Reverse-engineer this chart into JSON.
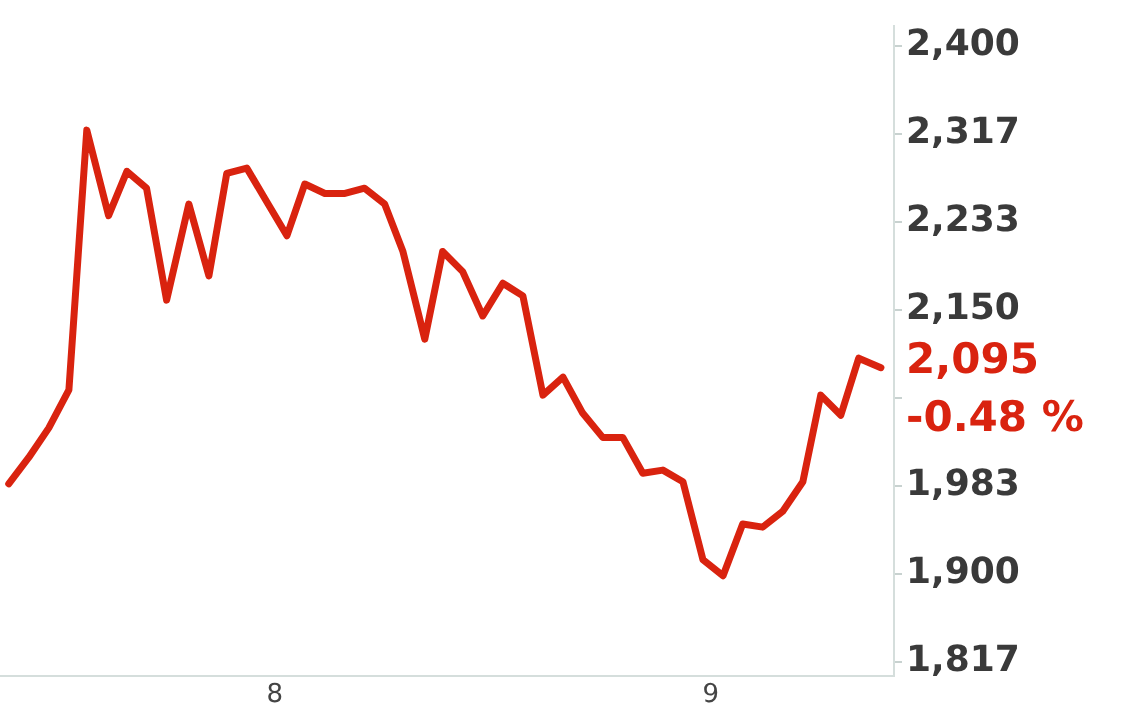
{
  "chart_data": {
    "type": "line",
    "x": [
      7.39,
      7.436,
      7.482,
      7.528,
      7.569,
      7.619,
      7.661,
      7.706,
      7.752,
      7.803,
      7.849,
      7.89,
      7.936,
      7.982,
      8.028,
      8.069,
      8.115,
      8.161,
      8.206,
      8.252,
      8.294,
      8.344,
      8.385,
      8.431,
      8.477,
      8.523,
      8.569,
      8.615,
      8.661,
      8.706,
      8.752,
      8.798,
      8.844,
      8.89,
      8.936,
      8.982,
      9.028,
      9.073,
      9.119,
      9.165,
      9.211,
      9.252,
      9.298,
      9.339,
      9.39
    ],
    "series": [
      {
        "color": "#d9230f",
        "values": [
          1985,
          2010,
          2038,
          2074,
          2320,
          2239,
          2281,
          2265,
          2159,
          2250,
          2182,
          2279,
          2284,
          2252,
          2220,
          2269,
          2260,
          2260,
          2265,
          2250,
          2205,
          2122,
          2205,
          2186,
          2144,
          2175,
          2163,
          2069,
          2086,
          2052,
          2029,
          2029,
          1995,
          1998,
          1987,
          1913,
          1898,
          1947,
          1944,
          1959,
          1987,
          2069,
          2050,
          2104,
          2095
        ]
      }
    ],
    "xlim": [
      7.37,
      9.42
    ],
    "xticks": [
      8,
      9
    ],
    "ylim": [
      1803,
      2419
    ],
    "yticks": [
      {
        "value": 1816.67,
        "label": "1,817"
      },
      {
        "value": 1900,
        "label": "1,900"
      },
      {
        "value": 1983.33,
        "label": "1,983"
      },
      {
        "value": 2066.67,
        "label": null
      },
      {
        "value": 2150,
        "label": "2,150"
      },
      {
        "value": 2233.33,
        "label": "2,233"
      },
      {
        "value": 2316.67,
        "label": "2,317"
      },
      {
        "value": 2400,
        "label": "2,400"
      }
    ],
    "annotations": [
      "2,095",
      "-0.48 %"
    ],
    "grid": false,
    "legend": false,
    "marker": "none",
    "line_style": "solid"
  }
}
